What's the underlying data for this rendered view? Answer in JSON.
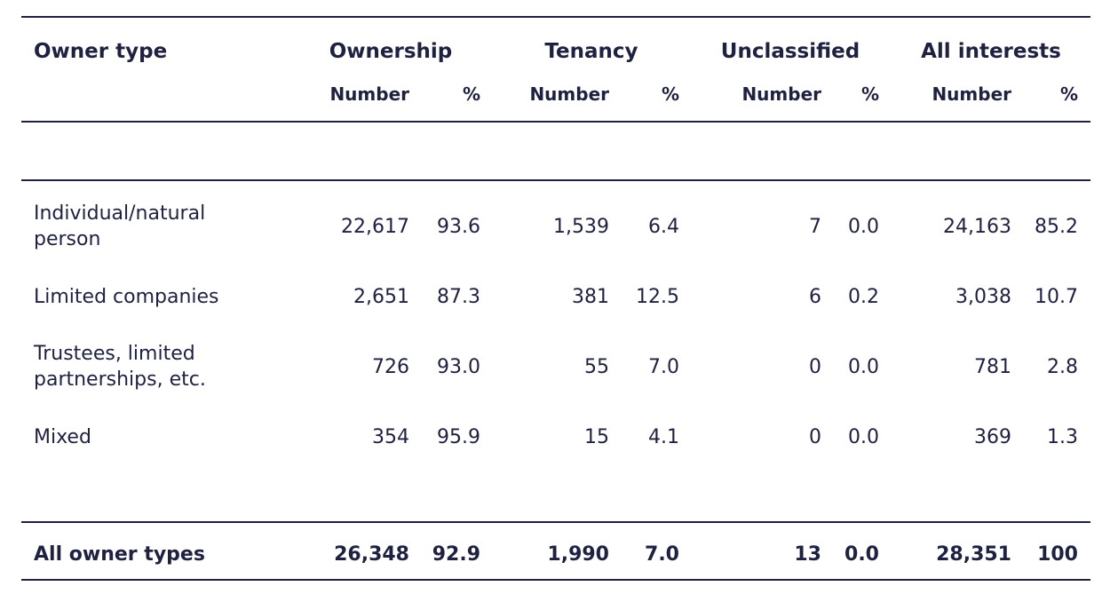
{
  "columns": {
    "owner_type": "Owner type",
    "groups": [
      "Ownership",
      "Tenancy",
      "Unclassified",
      "All interests"
    ],
    "sub": [
      "Number",
      "%"
    ]
  },
  "rows": [
    {
      "label": "Individual/natural person",
      "values": [
        "22,617",
        "93.6",
        "1,539",
        "6.4",
        "7",
        "0.0",
        "24,163",
        "85.2"
      ]
    },
    {
      "label": "Limited companies",
      "values": [
        "2,651",
        "87.3",
        "381",
        "12.5",
        "6",
        "0.2",
        "3,038",
        "10.7"
      ]
    },
    {
      "label": "Trustees, limited partnerships, etc.",
      "values": [
        "726",
        "93.0",
        "55",
        "7.0",
        "0",
        "0.0",
        "781",
        "2.8"
      ]
    },
    {
      "label": "Mixed",
      "values": [
        "354",
        "95.9",
        "15",
        "4.1",
        "0",
        "0.0",
        "369",
        "1.3"
      ]
    }
  ],
  "total": {
    "label": "All owner types",
    "values": [
      "26,348",
      "92.9",
      "1,990",
      "7.0",
      "13",
      "0.0",
      "28,351",
      "100"
    ]
  }
}
